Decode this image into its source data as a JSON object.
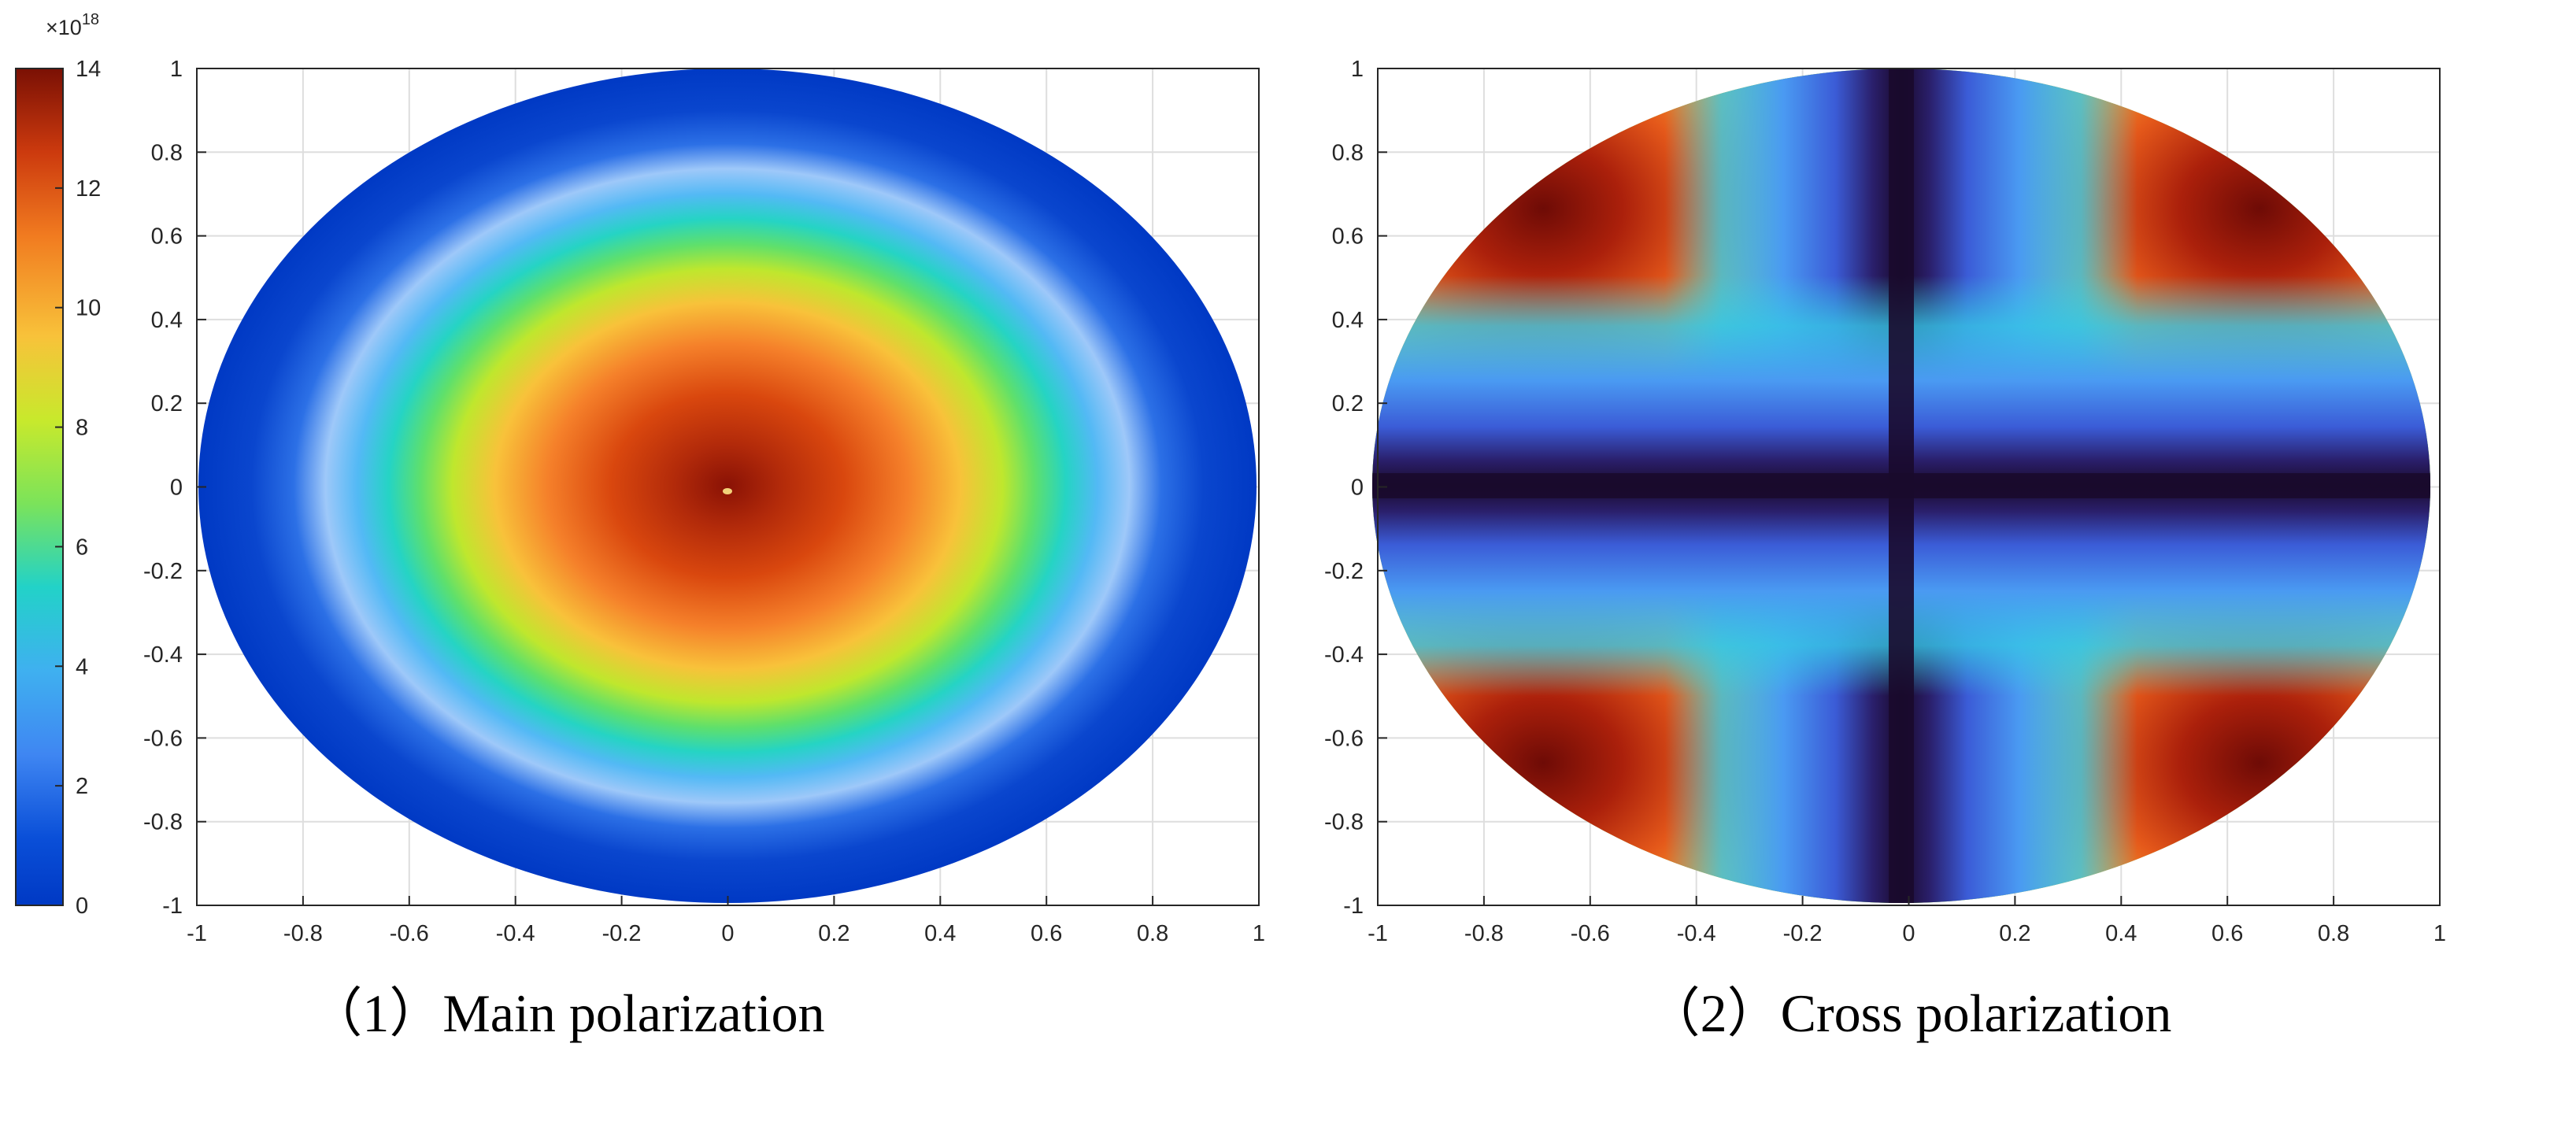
{
  "chart_data": [
    {
      "type": "heatmap",
      "name": "main-polarization",
      "title": "",
      "caption": "（1）Main polarization",
      "xlabel": "",
      "ylabel": "",
      "xlim": [
        -1,
        1
      ],
      "ylim": [
        -1,
        1
      ],
      "grid": true,
      "field": "x^2 + y^2 <= 1 (circular aperture), smooth radial peak at origin, near-zero at rim",
      "x_ticks": [
        "-1",
        "-0.8",
        "-0.6",
        "-0.4",
        "-0.2",
        "0",
        "0.2",
        "0.4",
        "0.6",
        "0.8",
        "1"
      ],
      "y_ticks": [
        "1",
        "0.8",
        "0.6",
        "0.4",
        "0.2",
        "0",
        "-0.2",
        "-0.4",
        "-0.6",
        "-0.8",
        "-1"
      ],
      "colorbar": {
        "min": 0,
        "max": 14,
        "exponent_base": "×10",
        "exponent_power": "18",
        "ticks": [
          "14",
          "12",
          "10",
          "8",
          "6",
          "4",
          "2",
          "0"
        ]
      }
    },
    {
      "type": "heatmap",
      "name": "cross-polarization",
      "title": "",
      "caption": "（2）Cross polarization",
      "xlabel": "",
      "ylabel": "",
      "xlim": [
        -1,
        1
      ],
      "ylim": [
        -1,
        1
      ],
      "grid": true,
      "field": "circular aperture, four-lobe |xy|-type pattern, zero along x=0 and y=0, peaks near |x|,|y| ≈ 0.6-0.7",
      "x_ticks": [
        "-1",
        "-0.8",
        "-0.6",
        "-0.4",
        "-0.2",
        "0",
        "0.2",
        "0.4",
        "0.6",
        "0.8",
        "1"
      ],
      "y_ticks": [
        "1",
        "0.8",
        "0.6",
        "0.4",
        "0.2",
        "0",
        "-0.2",
        "-0.4",
        "-0.6",
        "-0.8",
        "-1"
      ]
    }
  ]
}
